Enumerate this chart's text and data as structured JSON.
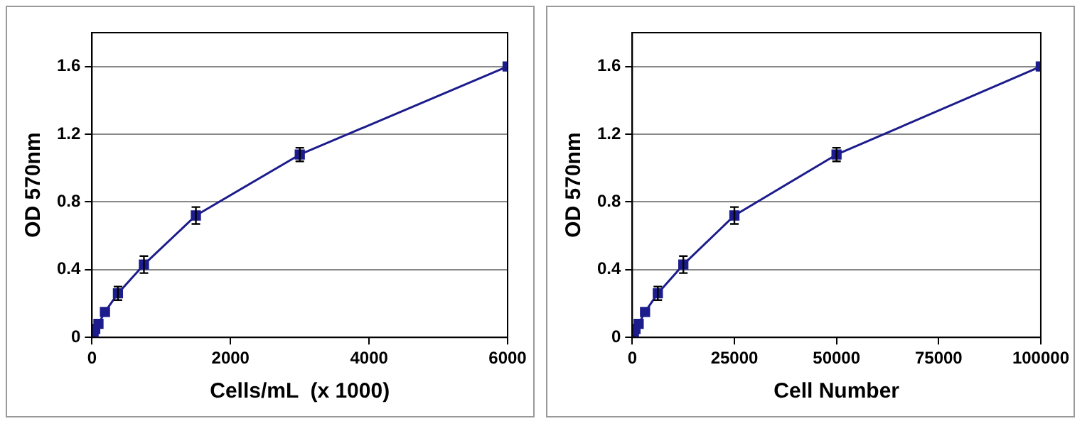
{
  "chart_data": [
    {
      "type": "line",
      "xlabel": "Cells/mL  (x 1000)",
      "ylabel": "OD 570nm",
      "xlim": [
        0,
        6000
      ],
      "xticks": [
        0,
        2000,
        4000,
        6000
      ],
      "ylim": [
        0,
        1.8
      ],
      "yticks": [
        0,
        0.4,
        0.8,
        1.2,
        1.6
      ],
      "grid": "y",
      "legend": false,
      "marker": "square",
      "line_style": "solid",
      "series": [
        {
          "color": "#1c1c8c",
          "x": [
            6000,
            3000,
            1500,
            750,
            375,
            187.5,
            93.75,
            46.88,
            23.44,
            11.72,
            5.86
          ],
          "values": [
            1.6,
            1.08,
            0.72,
            0.43,
            0.26,
            0.15,
            0.08,
            0.05,
            0.03,
            0.02,
            0.01
          ],
          "errors": [
            null,
            0.04,
            0.05,
            0.05,
            0.04,
            null,
            null,
            null,
            null,
            null,
            null
          ]
        }
      ]
    },
    {
      "type": "line",
      "xlabel": "Cell Number",
      "ylabel": "OD 570nm",
      "xlim": [
        0,
        100000
      ],
      "xticks": [
        0,
        25000,
        50000,
        75000,
        100000
      ],
      "ylim": [
        0,
        1.8
      ],
      "yticks": [
        0,
        0.4,
        0.8,
        1.2,
        1.6
      ],
      "grid": "y",
      "legend": false,
      "marker": "square",
      "line_style": "solid",
      "series": [
        {
          "color": "#1c1c8c",
          "x": [
            100000,
            50000,
            25000,
            12500,
            6250,
            3125,
            1562.5,
            781.25,
            390.63,
            195.31,
            97.66
          ],
          "values": [
            1.6,
            1.08,
            0.72,
            0.43,
            0.26,
            0.15,
            0.08,
            0.05,
            0.03,
            0.02,
            0.01
          ],
          "errors": [
            null,
            0.04,
            0.05,
            0.05,
            0.04,
            null,
            null,
            null,
            null,
            null,
            null
          ]
        }
      ]
    }
  ]
}
